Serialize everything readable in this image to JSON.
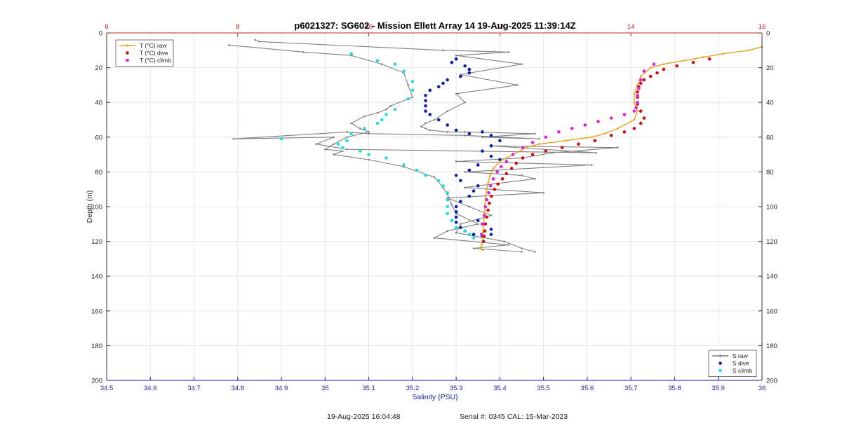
{
  "chart_data": {
    "type": "line",
    "title": "p6021327: SG602 - Mission Ellett Array 14 19-Aug-2025 11:39:14Z",
    "xlabel": "Salinity (PSU)",
    "ylabel": "Depth (m)",
    "xlim": [
      34.5,
      36
    ],
    "top_xlim": [
      6,
      16
    ],
    "ylim": [
      0,
      200
    ],
    "y_reversed": true,
    "grid": true,
    "x_ticks": [
      "34.5",
      "34.6",
      "34.7",
      "34.8",
      "34.9",
      "35",
      "35.1",
      "35.2",
      "35.3",
      "35.4",
      "35.5",
      "35.6",
      "35.7",
      "35.8",
      "35.9",
      "36"
    ],
    "top_x_ticks": [
      "6",
      "8",
      "10",
      "12",
      "14",
      "16"
    ],
    "y_ticks": [
      "0",
      "20",
      "40",
      "60",
      "80",
      "100",
      "120",
      "140",
      "160",
      "180",
      "200"
    ],
    "legend_left": {
      "position": "top-left",
      "entries": [
        {
          "label": "T (°C) raw",
          "color": "#e6a21a"
        },
        {
          "label": "T (°C) dive",
          "color": "#cc1111"
        },
        {
          "label": "T (°C) climb",
          "color": "#dd22dd"
        }
      ]
    },
    "legend_right": {
      "position": "bottom-right",
      "entries": [
        {
          "label": "S raw",
          "color": "#808080"
        },
        {
          "label": "S dive",
          "color": "#0a1fb0"
        },
        {
          "label": "S climb",
          "color": "#22dddd"
        }
      ]
    },
    "series": [
      {
        "name": "S raw",
        "axis": "salinity",
        "style": "line",
        "color": "#808080",
        "x": [
          34.84,
          34.85,
          35.27,
          35.42,
          35.3,
          35.45,
          35.31,
          35.44,
          35.3,
          35.32,
          35.28,
          35.25,
          35.23,
          35.22,
          35.23,
          35.24,
          35.28,
          35.32,
          35.48,
          35.36,
          35.49,
          35.32,
          35.1,
          35.05,
          34.79,
          35.02,
          34.98,
          35.05,
          35.62,
          35.38,
          35.67,
          35.52,
          35.45,
          35.3,
          35.61,
          35.32,
          35.45,
          35.48,
          35.32,
          35.5,
          35.28,
          35.33,
          35.38,
          35.31,
          35.3,
          35.41,
          35.45,
          35.48
        ],
        "y": [
          4,
          5,
          10,
          11,
          13,
          18,
          24,
          30,
          35,
          40,
          45,
          50,
          52,
          54,
          55,
          56,
          57,
          57,
          58,
          60,
          61,
          59,
          58,
          57,
          61,
          60,
          64,
          67,
          69,
          65,
          66,
          69,
          72,
          74,
          76,
          80,
          82,
          84,
          89,
          92,
          95,
          100,
          105,
          110,
          115,
          120,
          124,
          126
        ]
      },
      {
        "name": "S raw",
        "axis": "salinity",
        "style": "line",
        "color": "#808080",
        "x": [
          34.78,
          34.95,
          35.06,
          35.13,
          35.18,
          35.19,
          35.2,
          35.15,
          35.14,
          35.12,
          35.09,
          35.06,
          35.08,
          35.1,
          35.05,
          35.02,
          35.0,
          35.04,
          35.02,
          35.1,
          35.18,
          35.25,
          35.27,
          35.28,
          35.29,
          35.3,
          35.35,
          35.28,
          35.25,
          35.42,
          35.34,
          35.45
        ],
        "y": [
          7,
          11,
          13,
          18,
          23,
          30,
          37,
          42,
          44,
          46,
          48,
          52,
          55,
          57,
          60,
          64,
          67,
          68,
          70,
          73,
          77,
          83,
          89,
          93,
          99,
          104,
          110,
          114,
          118,
          122,
          124,
          126
        ]
      },
      {
        "name": "S dive",
        "axis": "salinity",
        "style": "dots",
        "color": "#0a1fb0",
        "x": [
          35.3,
          35.29,
          35.32,
          35.33,
          35.33,
          35.31,
          35.28,
          35.27,
          35.26,
          35.24,
          35.23,
          35.23,
          35.23,
          35.23,
          35.24,
          35.26,
          35.28,
          35.3,
          35.33,
          35.36,
          35.38,
          35.4,
          35.38,
          35.36,
          35.38,
          35.4,
          35.35,
          35.33,
          35.3,
          35.31,
          35.35,
          35.34,
          35.33,
          35.31,
          35.3,
          35.3,
          35.3,
          35.3,
          35.31,
          35.32,
          35.34,
          35.36,
          35.38,
          35.38,
          35.36,
          35.35
        ],
        "y": [
          15,
          17,
          19,
          21,
          23,
          25,
          27,
          29,
          31,
          33,
          36,
          39,
          42,
          45,
          47,
          50,
          53,
          56,
          58,
          57,
          59,
          62,
          65,
          68,
          71,
          73,
          76,
          79,
          82,
          85,
          88,
          91,
          94,
          97,
          100,
          103,
          106,
          109,
          112,
          114,
          116,
          117,
          116,
          113,
          110,
          108
        ]
      },
      {
        "name": "S climb",
        "axis": "salinity",
        "style": "dots",
        "color": "#22dddd",
        "x": [
          35.06,
          35.12,
          35.16,
          35.18,
          35.2,
          35.2,
          35.19,
          35.16,
          35.14,
          35.13,
          35.12,
          35.09,
          35.06,
          34.9,
          35.05,
          35.03,
          35.04,
          35.08,
          35.1,
          35.14,
          35.18,
          35.21,
          35.23,
          35.26,
          35.27,
          35.28,
          35.28,
          35.28,
          35.28,
          35.29,
          35.3,
          35.32,
          35.33,
          35.34
        ],
        "y": [
          12,
          16,
          18,
          22,
          28,
          33,
          38,
          44,
          47,
          50,
          52,
          55,
          58,
          61,
          62,
          64,
          66,
          68,
          70,
          72,
          76,
          79,
          82,
          85,
          88,
          92,
          96,
          100,
          104,
          108,
          112,
          114,
          116,
          118
        ]
      },
      {
        "name": "T (°C) raw",
        "axis": "temperature",
        "style": "line-dots",
        "color": "#e6a21a",
        "x": [
          16.0,
          15.8,
          15.4,
          15.1,
          14.8,
          14.5,
          14.3,
          14.15,
          14.1,
          14.05,
          14.05,
          14.1,
          14.05,
          13.8,
          13.6,
          13.4,
          13.0,
          12.6,
          12.4,
          12.2,
          12.0,
          11.9,
          11.85,
          11.82,
          11.8,
          11.78,
          11.77,
          11.77,
          11.75,
          11.74,
          11.74,
          11.75,
          11.72,
          11.7,
          11.74
        ],
        "y": [
          8,
          10,
          12,
          14,
          16,
          18,
          20,
          25,
          30,
          35,
          40,
          45,
          50,
          55,
          58,
          60,
          62,
          64,
          66,
          70,
          74,
          78,
          82,
          86,
          90,
          95,
          100,
          105,
          110,
          115,
          118,
          120,
          122,
          124,
          125
        ]
      },
      {
        "name": "T (°C) dive",
        "axis": "temperature",
        "style": "dots",
        "color": "#cc1111",
        "x": [
          15.2,
          14.95,
          14.7,
          14.5,
          14.4,
          14.3,
          14.2,
          14.15,
          14.12,
          14.1,
          14.1,
          14.1,
          14.15,
          14.2,
          14.15,
          14.05,
          13.9,
          13.7,
          13.45,
          13.2,
          12.95,
          12.7,
          12.5,
          12.35,
          12.25,
          12.18,
          12.1,
          12.04,
          11.97,
          11.92,
          11.87,
          11.84,
          11.82,
          11.8,
          11.78,
          11.77,
          11.76,
          11.75
        ],
        "y": [
          15,
          17,
          19,
          21,
          23,
          25,
          27,
          29,
          31,
          34,
          37,
          41,
          45,
          49,
          52,
          55,
          57,
          59,
          62,
          64,
          66,
          68,
          70,
          72,
          75,
          78,
          81,
          84,
          87,
          90,
          94,
          98,
          102,
          106,
          110,
          114,
          117,
          120
        ]
      },
      {
        "name": "T (°C) climb",
        "axis": "temperature",
        "style": "dots",
        "color": "#dd22dd",
        "x": [
          14.35,
          14.2,
          14.15,
          14.12,
          14.1,
          14.1,
          14.08,
          14.05,
          13.9,
          13.7,
          13.5,
          13.3,
          13.1,
          12.9,
          12.7,
          12.5,
          12.35,
          12.2,
          12.1,
          12.02,
          11.96,
          11.9,
          11.86,
          11.83,
          11.8,
          11.78,
          11.76,
          11.74,
          11.72
        ],
        "y": [
          18,
          22,
          27,
          32,
          36,
          40,
          43,
          45,
          47,
          49,
          51,
          53,
          55,
          57,
          60,
          63,
          66,
          70,
          74,
          77,
          80,
          84,
          88,
          92,
          96,
          100,
          105,
          110,
          116
        ]
      }
    ]
  },
  "footer": {
    "timestamp": "19-Aug-2025 16:04:48",
    "serial": "Serial #: 0345  CAL: 15-Mar-2023"
  }
}
